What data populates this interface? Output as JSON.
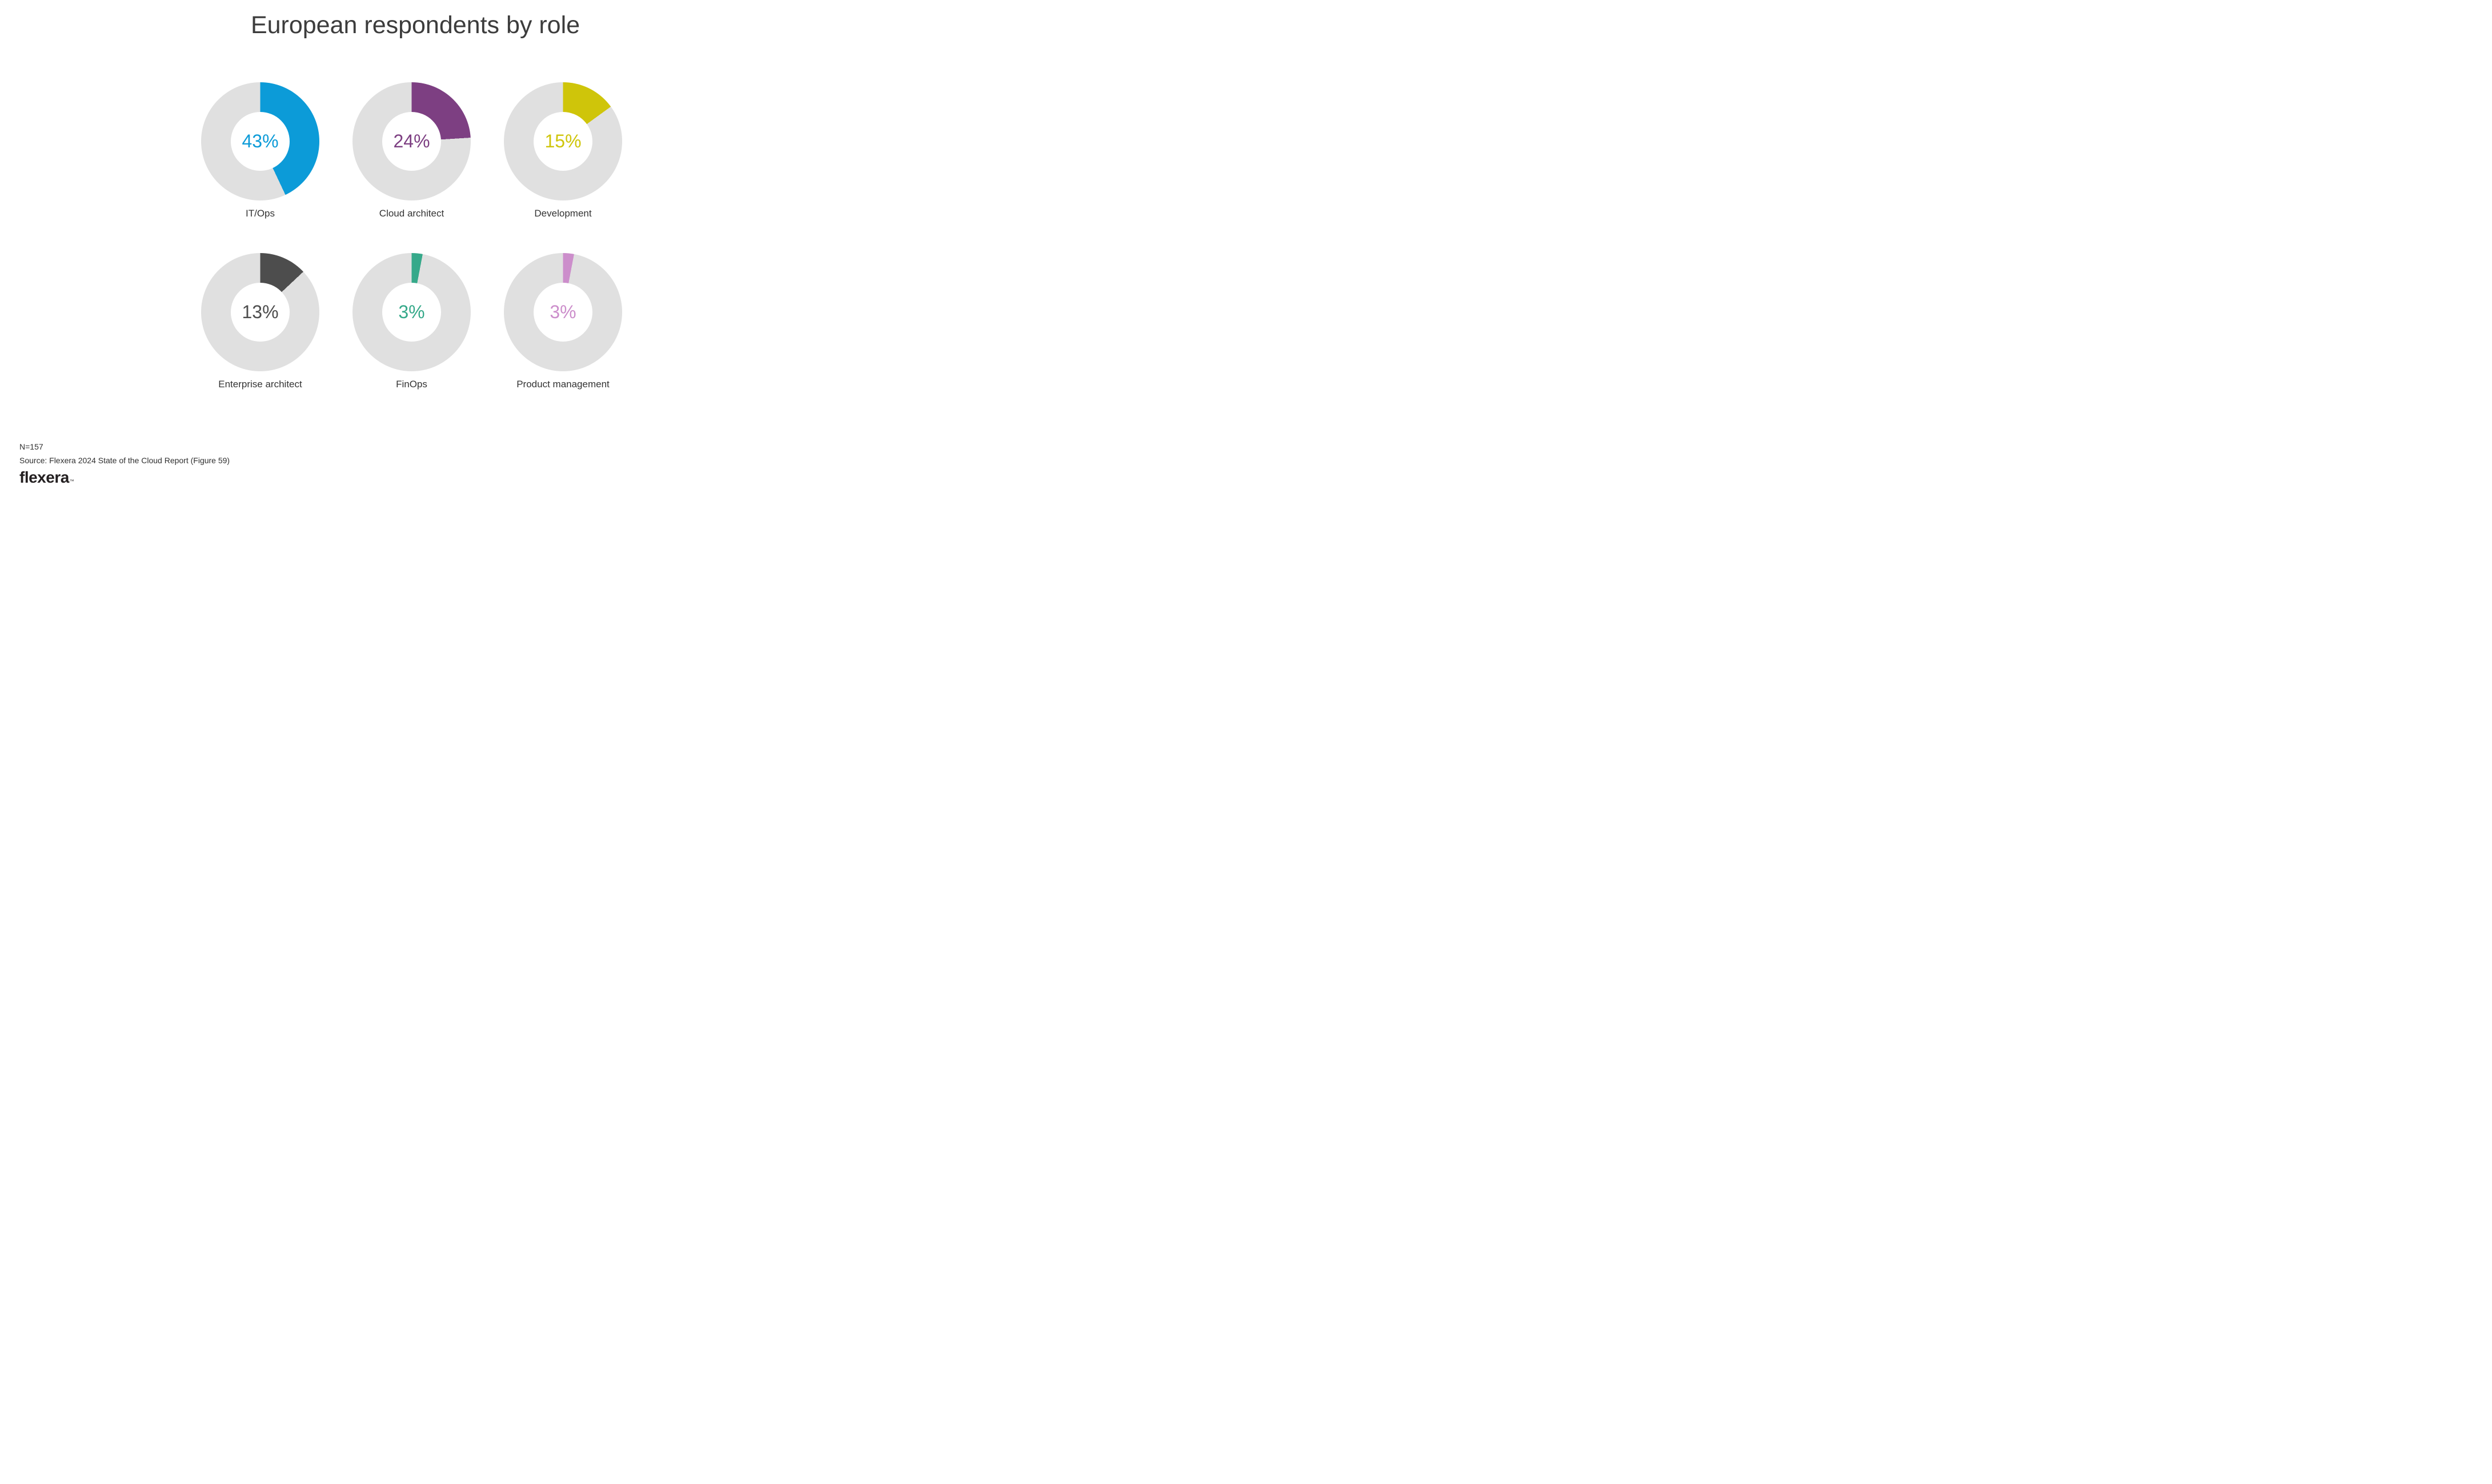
{
  "title": "European respondents by role",
  "chart_data": {
    "type": "pie",
    "subtype": "donut-small-multiples",
    "title": "European respondents by role",
    "units": "%",
    "legend": "none",
    "categories": [
      "IT/Ops",
      "Cloud architect",
      "Development",
      "Enterprise architect",
      "FinOps",
      "Product management"
    ],
    "values": [
      43,
      24,
      15,
      13,
      3,
      3
    ],
    "labels": [
      "43%",
      "24%",
      "15%",
      "13%",
      "3%",
      "3%"
    ],
    "colors": [
      "#0c9bd8",
      "#7d3f82",
      "#cfc50a",
      "#4d4d4d",
      "#36a98a",
      "#cc8ecb"
    ],
    "track_color": "#e0e0e0",
    "start_angle_deg": 0,
    "direction": "clockwise",
    "sample_size": "N=157"
  },
  "footer": {
    "n_label": "N=157",
    "source": "Source: Flexera 2024 State of the Cloud Report (Figure 59)",
    "logo_text": "flexera",
    "logo_tm": "™"
  }
}
